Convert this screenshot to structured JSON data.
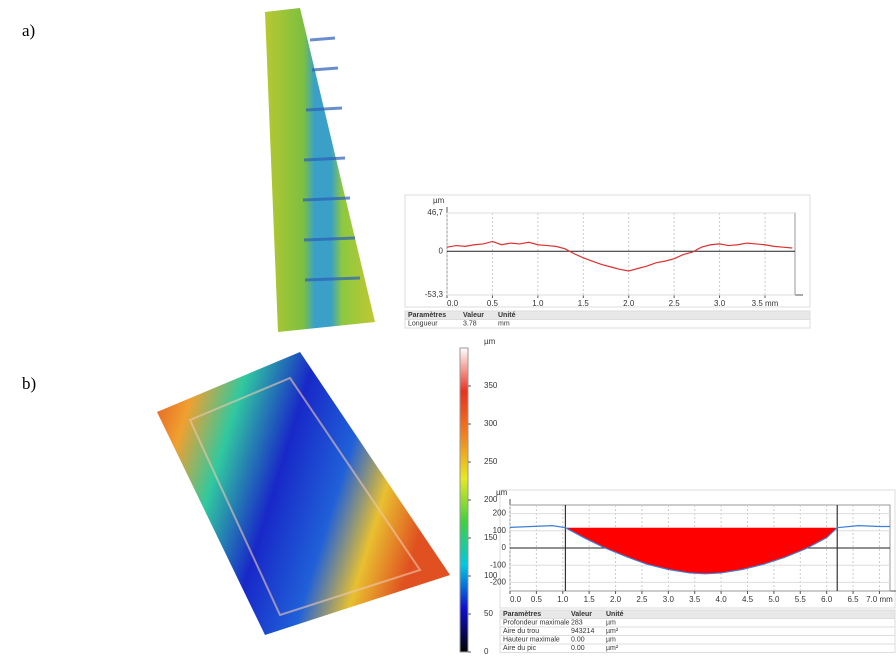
{
  "labels": {
    "a": "a)",
    "b": "b)"
  },
  "chart_data": [
    {
      "type": "line",
      "y_label": "µm",
      "xlim": [
        0,
        3.83
      ],
      "ylim": [
        -53.3,
        46.7
      ],
      "grid": true,
      "xticks": [
        {
          "value": 0,
          "label": "0.0"
        },
        0.5,
        {
          "value": 1,
          "label": "1.0"
        },
        1.5,
        {
          "value": 2,
          "label": "2.0"
        },
        2.5,
        {
          "value": 3,
          "label": "3.0"
        },
        {
          "value": 3.5,
          "label": "3.5 mm"
        }
      ],
      "yticks": [
        {
          "value": 46.7,
          "label": "46,7"
        },
        0,
        {
          "value": -53.3,
          "label": "-53,3"
        }
      ],
      "x": [
        0,
        0.1,
        0.2,
        0.3,
        0.4,
        0.5,
        0.6,
        0.7,
        0.8,
        0.9,
        1.0,
        1.1,
        1.2,
        1.3,
        1.4,
        1.5,
        1.6,
        1.7,
        1.8,
        1.9,
        2.0,
        2.1,
        2.2,
        2.3,
        2.4,
        2.5,
        2.6,
        2.7,
        2.8,
        2.9,
        3.0,
        3.1,
        3.2,
        3.3,
        3.4,
        3.5,
        3.6,
        3.7,
        3.8
      ],
      "series": [
        {
          "color": "#e03030",
          "values": [
            5,
            7,
            6,
            8,
            9,
            12,
            8,
            10,
            9,
            11,
            8,
            7,
            6,
            3,
            -3,
            -8,
            -12,
            -16,
            -19,
            -22,
            -24,
            -21,
            -18,
            -14,
            -12,
            -9,
            -4,
            -1,
            5,
            8,
            9,
            7,
            8,
            10,
            9,
            8,
            6,
            5,
            4
          ]
        }
      ],
      "table": {
        "header": [
          "Paramètres",
          "Valeur",
          "Unité"
        ],
        "rows": [
          [
            "Longueur",
            "3.78",
            "mm"
          ]
        ]
      }
    },
    {
      "type": "line",
      "y_label": "µm",
      "xlim": [
        0,
        7.2
      ],
      "ylim": [
        -250,
        250
      ],
      "grid": true,
      "xticks": [
        {
          "value": 0,
          "label": "0.0"
        },
        0.5,
        {
          "value": 1,
          "label": "1.0"
        },
        1.5,
        {
          "value": 2,
          "label": "2.0"
        },
        2.5,
        {
          "value": 3,
          "label": "3.0"
        },
        3.5,
        {
          "value": 4,
          "label": "4.0"
        },
        4.5,
        {
          "value": 5,
          "label": "5.0"
        },
        5.5,
        {
          "value": 6,
          "label": "6.0"
        },
        6.5,
        {
          "value": 7,
          "label": "7.0 mm"
        }
      ],
      "yticks": [
        200,
        100,
        0,
        -100,
        -200
      ],
      "x": [
        0,
        0.4,
        0.8,
        1.05,
        1.4,
        1.8,
        2.2,
        2.6,
        3.0,
        3.4,
        3.7,
        4.0,
        4.4,
        4.8,
        5.2,
        5.6,
        6.0,
        6.2,
        6.6,
        7.0,
        7.2
      ],
      "series": [
        {
          "color": "#3a7fd5",
          "values": [
            120,
            125,
            130,
            118,
            60,
            0,
            -50,
            -95,
            -125,
            -145,
            -150,
            -145,
            -125,
            -95,
            -55,
            -5,
            60,
            118,
            130,
            125,
            125
          ]
        }
      ],
      "cursors": [
        1.05,
        6.2
      ],
      "fill_level": 118,
      "fill_color": "#ff0000",
      "table": {
        "header": [
          "Paramètres",
          "Valeur",
          "Unité"
        ],
        "rows": [
          [
            "Profondeur maximale",
            "283",
            "µm"
          ],
          [
            "Aire du trou",
            "943214",
            "µm²"
          ],
          [
            "Hauteur maximale",
            "0.00",
            "µm"
          ],
          [
            "Aire du pic",
            "0.00",
            "µm²"
          ]
        ]
      }
    },
    {
      "type": "colorbar",
      "y_label": "µm",
      "ylim": [
        0,
        400
      ],
      "yticks": [
        0,
        50,
        100,
        150,
        200,
        250,
        300,
        350
      ],
      "colors": [
        "#000000",
        "#1010d0",
        "#00c8e0",
        "#40d040",
        "#e8e820",
        "#f08020",
        "#e83020",
        "#ffffff"
      ]
    }
  ]
}
